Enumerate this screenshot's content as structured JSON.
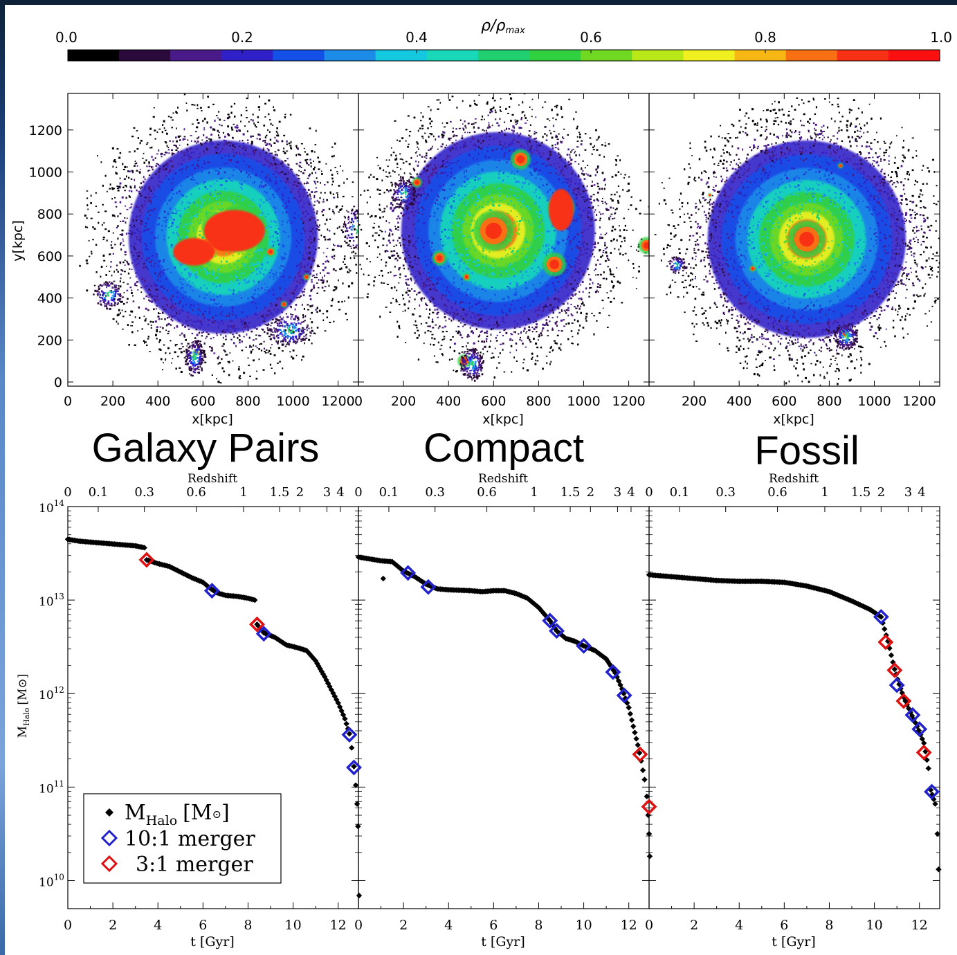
{
  "colorbar": {
    "label": "ρ/ρ_max",
    "label_main": "ρ/ρ",
    "label_sub": "max",
    "ticks": [
      "0.0",
      "0.2",
      "0.4",
      "0.6",
      "0.8",
      "1.0"
    ],
    "colors": [
      "#000000",
      "#2a0a3a",
      "#4b1a8a",
      "#3020c8",
      "#1450e8",
      "#1c8ce8",
      "#14c8e0",
      "#18d8b8",
      "#20d070",
      "#30d040",
      "#70d820",
      "#b8e818",
      "#f0f020",
      "#f8b814",
      "#f87014",
      "#f83014",
      "#ff1010"
    ]
  },
  "density_maps": {
    "xlabel": "x[kpc]",
    "ylabel": "y[kpc]",
    "x_ticks": [
      "0",
      "200",
      "400",
      "600",
      "800",
      "1000",
      "1200"
    ],
    "x_ticks_last": [
      "200",
      "400",
      "600",
      "800",
      "1000",
      "1200"
    ],
    "x_ticks_mid": [
      "0",
      "200",
      "400",
      "600",
      "800",
      "1000",
      "1200"
    ],
    "y_ticks": [
      "0",
      "200",
      "400",
      "600",
      "800",
      "1000",
      "1200"
    ],
    "panels": [
      {
        "title": "Galaxy Pairs"
      },
      {
        "title": "Compact"
      },
      {
        "title": "Fossil"
      }
    ]
  },
  "chart_data": {
    "type": "scatter",
    "y_scale": "log",
    "ylabel": "M_Halo [M⊙]",
    "ylabel_main": "M",
    "ylabel_sub": "Halo",
    "ylabel_unit": "[M⊙]",
    "xlabel": "t [Gyr]",
    "x_ticks": [
      "0",
      "2",
      "4",
      "6",
      "8",
      "10",
      "12"
    ],
    "top_axis_label": "Redshift",
    "top_ticks": [
      {
        "label": "0",
        "t": 0
      },
      {
        "label": "0.1",
        "t": 1.35
      },
      {
        "label": "0.3",
        "t": 3.4
      },
      {
        "label": "0.6",
        "t": 5.7
      },
      {
        "label": "1",
        "t": 7.8
      },
      {
        "label": "1.5",
        "t": 9.4
      },
      {
        "label": "2",
        "t": 10.3
      },
      {
        "label": "3",
        "t": 11.5
      },
      {
        "label": "4",
        "t": 12.1
      }
    ],
    "y_ticks": [
      "10^10",
      "10^11",
      "10^12",
      "10^13",
      "10^14"
    ],
    "y_tick_base": "10",
    "y_tick_exps": [
      "10",
      "11",
      "12",
      "13",
      "14"
    ],
    "xlim": [
      0,
      12.9
    ],
    "ylim_log10": [
      9.7,
      14.0
    ],
    "legend": {
      "entries": [
        {
          "label": "M_Halo [M⊙]",
          "main": "M",
          "sub": "Halo",
          "unit": "[M",
          "unit_end": "]",
          "marker": "diamond-filled",
          "color": "#000000"
        },
        {
          "label": "10:1 merger",
          "marker": "diamond-open",
          "color": "#2222cc"
        },
        {
          "label": "3:1 merger",
          "marker": "diamond-open",
          "color": "#dd1111"
        }
      ]
    },
    "panels": [
      {
        "name": "Galaxy Pairs",
        "track": [
          [
            0,
            13.65
          ],
          [
            0.5,
            13.63
          ],
          [
            1,
            13.62
          ],
          [
            1.5,
            13.61
          ],
          [
            2,
            13.6
          ],
          [
            2.5,
            13.59
          ],
          [
            3,
            13.58
          ],
          [
            3.4,
            13.56
          ],
          [
            3.5,
            13.43
          ],
          [
            4,
            13.39
          ],
          [
            4.5,
            13.36
          ],
          [
            5,
            13.3
          ],
          [
            5.5,
            13.24
          ],
          [
            6,
            13.19
          ],
          [
            6.3,
            13.13
          ],
          [
            6.6,
            13.08
          ],
          [
            7,
            13.05
          ],
          [
            7.5,
            13.04
          ],
          [
            8,
            13.02
          ],
          [
            8.3,
            13.0
          ],
          [
            8.4,
            12.74
          ],
          [
            8.7,
            12.65
          ],
          [
            9.2,
            12.6
          ],
          [
            9.7,
            12.52
          ],
          [
            10.2,
            12.49
          ],
          [
            10.6,
            12.46
          ],
          [
            11.0,
            12.35
          ],
          [
            11.4,
            12.18
          ],
          [
            11.7,
            12.04
          ],
          [
            12.0,
            11.9
          ],
          [
            12.3,
            11.73
          ],
          [
            12.5,
            11.57
          ],
          [
            12.6,
            11.42
          ],
          [
            12.7,
            11.22
          ],
          [
            12.78,
            11.02
          ],
          [
            12.84,
            10.82
          ],
          [
            12.88,
            10.58
          ],
          [
            12.93,
            9.84
          ]
        ],
        "merger_10_1": [
          [
            6.4,
            13.1
          ],
          [
            8.7,
            12.64
          ],
          [
            12.5,
            11.56
          ],
          [
            12.7,
            11.21
          ]
        ],
        "merger_3_1": [
          [
            3.5,
            13.43
          ],
          [
            8.4,
            12.74
          ]
        ]
      },
      {
        "name": "Compact",
        "track": [
          [
            0,
            13.46
          ],
          [
            0.5,
            13.44
          ],
          [
            1,
            13.42
          ],
          [
            1.5,
            13.41
          ],
          [
            2,
            13.31
          ],
          [
            2.5,
            13.25
          ],
          [
            3,
            13.17
          ],
          [
            3.5,
            13.12
          ],
          [
            4,
            13.11
          ],
          [
            5,
            13.1
          ],
          [
            5.5,
            13.09
          ],
          [
            6,
            13.1
          ],
          [
            6.5,
            13.1
          ],
          [
            7,
            13.07
          ],
          [
            7.5,
            13.02
          ],
          [
            8,
            12.92
          ],
          [
            8.5,
            12.78
          ],
          [
            8.8,
            12.67
          ],
          [
            9.2,
            12.59
          ],
          [
            9.6,
            12.56
          ],
          [
            10.0,
            12.51
          ],
          [
            10.5,
            12.46
          ],
          [
            11.0,
            12.37
          ],
          [
            11.4,
            12.22
          ],
          [
            11.7,
            12.05
          ],
          [
            12.0,
            11.85
          ],
          [
            12.2,
            11.65
          ],
          [
            12.4,
            11.45
          ],
          [
            12.55,
            11.28
          ],
          [
            12.7,
            11.08
          ],
          [
            12.8,
            10.9
          ],
          [
            12.86,
            10.7
          ],
          [
            12.9,
            10.5
          ],
          [
            12.93,
            10.26
          ]
        ],
        "track_extra": [
          [
            1.1,
            13.23
          ]
        ],
        "merger_10_1": [
          [
            2.2,
            13.29
          ],
          [
            3.1,
            13.14
          ],
          [
            8.5,
            12.78
          ],
          [
            8.8,
            12.67
          ],
          [
            10.0,
            12.51
          ],
          [
            11.3,
            12.23
          ],
          [
            11.8,
            11.98
          ]
        ],
        "merger_3_1": [
          [
            12.5,
            11.35
          ],
          [
            12.9,
            10.79
          ]
        ]
      },
      {
        "name": "Fossil",
        "track": [
          [
            0,
            13.27
          ],
          [
            1,
            13.25
          ],
          [
            2,
            13.23
          ],
          [
            3,
            13.21
          ],
          [
            4,
            13.2
          ],
          [
            5,
            13.2
          ],
          [
            6,
            13.19
          ],
          [
            7,
            13.15
          ],
          [
            8,
            13.09
          ],
          [
            9,
            12.99
          ],
          [
            9.8,
            12.9
          ],
          [
            10.3,
            12.82
          ],
          [
            10.6,
            12.56
          ],
          [
            10.9,
            12.26
          ],
          [
            11.1,
            12.1
          ],
          [
            11.3,
            11.96
          ],
          [
            11.6,
            11.8
          ],
          [
            11.9,
            11.65
          ],
          [
            12.2,
            11.47
          ],
          [
            12.4,
            11.2
          ],
          [
            12.5,
            10.97
          ],
          [
            12.7,
            10.82
          ],
          [
            12.8,
            10.5
          ],
          [
            12.85,
            10.12
          ]
        ],
        "merger_10_1": [
          [
            10.3,
            12.82
          ],
          [
            11.0,
            12.09
          ],
          [
            11.7,
            11.77
          ],
          [
            12.0,
            11.62
          ],
          [
            12.55,
            10.95
          ]
        ],
        "merger_3_1": [
          [
            10.5,
            12.55
          ],
          [
            10.9,
            12.25
          ],
          [
            11.3,
            11.92
          ],
          [
            12.2,
            11.37
          ]
        ]
      }
    ]
  }
}
